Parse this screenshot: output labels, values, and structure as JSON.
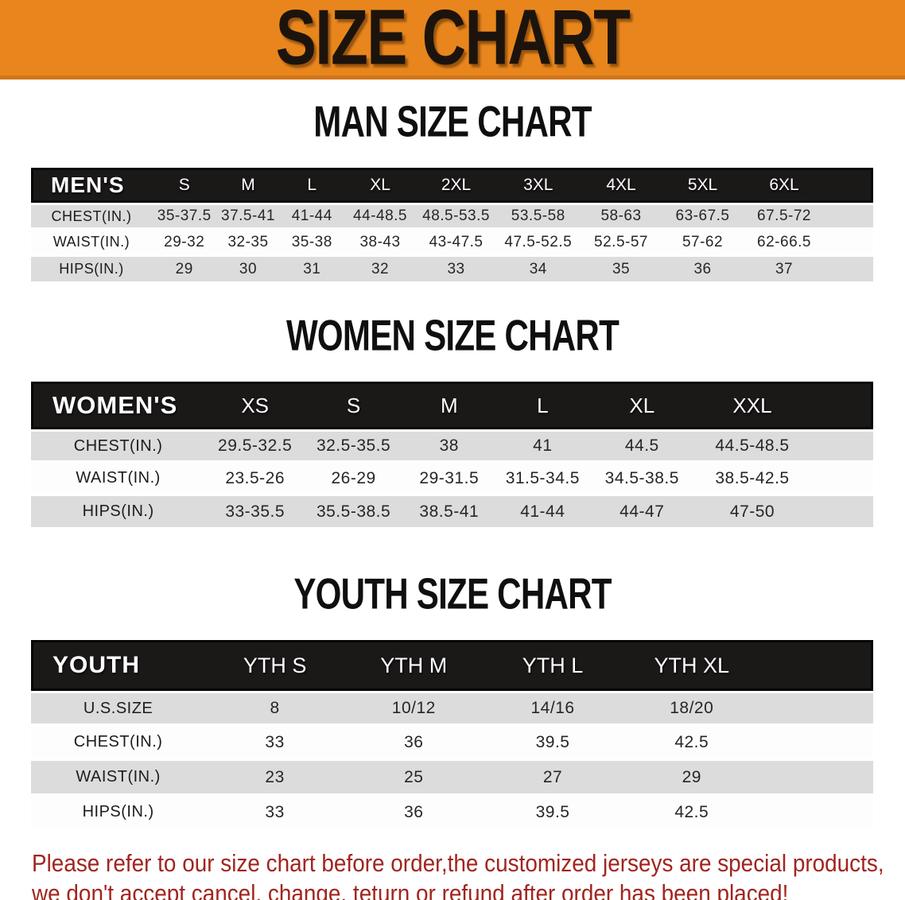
{
  "banner": {
    "title": "SIZE CHART",
    "bg_color": "#e8861d"
  },
  "colors": {
    "header_bar": "#1b1818",
    "row_alt": "#dcdcdc",
    "note_text": "#a1251f"
  },
  "sections": [
    {
      "heading": "MAN SIZE CHART",
      "table": {
        "label": "MEN'S",
        "sizes": [
          "S",
          "M",
          "L",
          "XL",
          "2XL",
          "3XL",
          "4XL",
          "5XL",
          "6XL"
        ],
        "rows": [
          {
            "label": "CHEST(IN.)",
            "values": [
              "35-37.5",
              "37.5-41",
              "41-44",
              "44-48.5",
              "48.5-53.5",
              "53.5-58",
              "58-63",
              "63-67.5",
              "67.5-72"
            ]
          },
          {
            "label": "WAIST(IN.)",
            "values": [
              "29-32",
              "32-35",
              "35-38",
              "38-43",
              "43-47.5",
              "47.5-52.5",
              "52.5-57",
              "57-62",
              "62-66.5"
            ]
          },
          {
            "label": "HIPS(IN.)",
            "values": [
              "29",
              "30",
              "31",
              "32",
              "33",
              "34",
              "35",
              "36",
              "37"
            ]
          }
        ]
      }
    },
    {
      "heading": "WOMEN SIZE CHART",
      "table": {
        "label": "WOMEN'S",
        "sizes": [
          "XS",
          "S",
          "M",
          "L",
          "XL",
          "XXL"
        ],
        "rows": [
          {
            "label": "CHEST(IN.)",
            "values": [
              "29.5-32.5",
              "32.5-35.5",
              "38",
              "41",
              "44.5",
              "44.5-48.5"
            ]
          },
          {
            "label": "WAIST(IN.)",
            "values": [
              "23.5-26",
              "26-29",
              "29-31.5",
              "31.5-34.5",
              "34.5-38.5",
              "38.5-42.5"
            ]
          },
          {
            "label": "HIPS(IN.)",
            "values": [
              "33-35.5",
              "35.5-38.5",
              "38.5-41",
              "41-44",
              "44-47",
              "47-50"
            ]
          }
        ]
      }
    },
    {
      "heading": "YOUTH SIZE CHART",
      "table": {
        "label": "YOUTH",
        "sizes": [
          "YTH S",
          "YTH M",
          "YTH L",
          "YTH XL"
        ],
        "rows": [
          {
            "label": "U.S.SIZE",
            "values": [
              "8",
              "10/12",
              "14/16",
              "18/20"
            ]
          },
          {
            "label": "CHEST(IN.)",
            "values": [
              "33",
              "36",
              "39.5",
              "42.5"
            ]
          },
          {
            "label": "WAIST(IN.)",
            "values": [
              "23",
              "25",
              "27",
              "29"
            ]
          },
          {
            "label": "HIPS(IN.)",
            "values": [
              "33",
              "36",
              "39.5",
              "42.5"
            ]
          }
        ]
      }
    }
  ],
  "note": {
    "lines": [
      "Please refer to our size chart before order,the customized jerseys are special products,",
      "we don't accept cancel, change, teturn or refund after order has been placed!"
    ]
  }
}
